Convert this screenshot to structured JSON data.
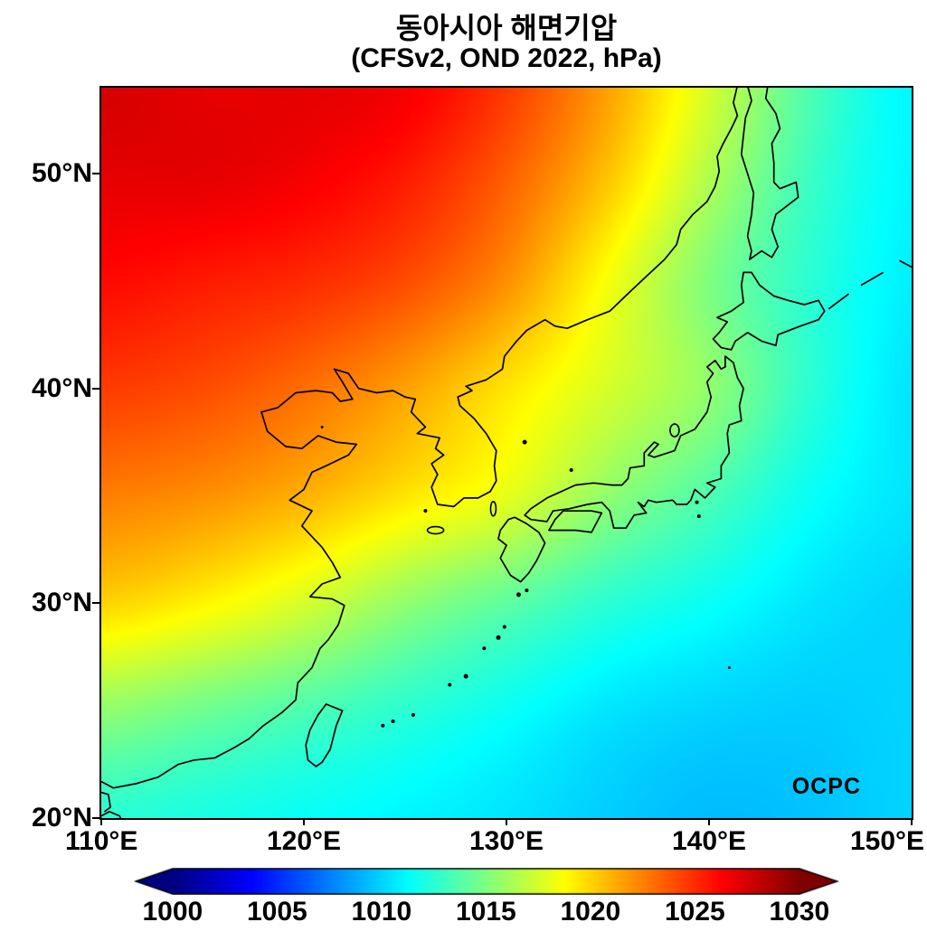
{
  "title": "동아시아 해면기압",
  "subtitle": "(CFSv2, OND 2022, hPa)",
  "watermark": "OCPC",
  "axes": {
    "y_ticks": [
      {
        "label": "50°N",
        "lat": 50
      },
      {
        "label": "40°N",
        "lat": 40
      },
      {
        "label": "30°N",
        "lat": 30
      },
      {
        "label": "20°N",
        "lat": 20
      }
    ],
    "x_ticks": [
      {
        "label": "110°E",
        "lon": 110
      },
      {
        "label": "120°E",
        "lon": 120
      },
      {
        "label": "130°E",
        "lon": 130
      },
      {
        "label": "140°E",
        "lon": 140
      },
      {
        "label": "150°E",
        "lon": 150
      }
    ]
  },
  "chart_data": {
    "type": "heatmap",
    "title": "동아시아 해면기압",
    "subtitle": "(CFSv2, OND 2022, hPa)",
    "units": "hPa",
    "lon_range": [
      110,
      150
    ],
    "lat_range": [
      20,
      54
    ],
    "colormap": "jet",
    "colorbar": {
      "min": 1000,
      "max": 1030,
      "ticks": [
        1000,
        1005,
        1010,
        1015,
        1020,
        1025,
        1030
      ],
      "extend": "both"
    },
    "grid": {
      "lons": [
        110,
        115,
        120,
        125,
        130,
        135,
        140,
        145,
        150
      ],
      "lats": [
        54,
        50,
        45,
        40,
        35,
        30,
        25,
        20
      ],
      "values": [
        [
          1027.5,
          1027.0,
          1027.0,
          1026.5,
          1024.5,
          1021.5,
          1017.5,
          1013.5,
          1011.0
        ],
        [
          1027.0,
          1027.0,
          1026.5,
          1025.5,
          1023.5,
          1020.5,
          1016.5,
          1013.0,
          1011.0
        ],
        [
          1026.0,
          1025.5,
          1025.0,
          1024.0,
          1022.0,
          1018.5,
          1015.0,
          1012.5,
          1010.8
        ],
        [
          1024.5,
          1024.0,
          1023.0,
          1021.5,
          1019.5,
          1017.5,
          1015.5,
          1012.5,
          1010.5
        ],
        [
          1022.5,
          1022.0,
          1021.0,
          1019.5,
          1018.0,
          1015.5,
          1013.5,
          1011.5,
          1010.5
        ],
        [
          1020.0,
          1019.0,
          1017.5,
          1015.5,
          1014.0,
          1012.5,
          1011.5,
          1010.5,
          1010.0
        ],
        [
          1015.5,
          1014.5,
          1013.5,
          1012.5,
          1011.5,
          1010.5,
          1010.0,
          1009.8,
          1010.0
        ],
        [
          1012.5,
          1012.0,
          1011.5,
          1011.0,
          1010.5,
          1009.8,
          1009.3,
          1009.5,
          1010.0
        ]
      ]
    }
  }
}
